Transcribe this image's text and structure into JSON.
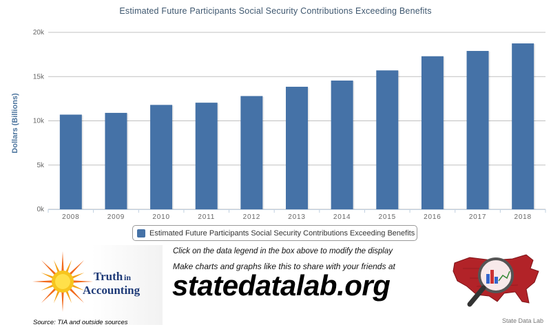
{
  "chart_data": {
    "type": "bar",
    "title": "Estimated Future Participants Social Security Contributions Exceeding Benefits",
    "ylabel": "Dollars (Billions)",
    "xlabel": "",
    "categories": [
      "2008",
      "2009",
      "2010",
      "2011",
      "2012",
      "2013",
      "2014",
      "2015",
      "2016",
      "2017",
      "2018"
    ],
    "series": [
      {
        "name": "Estimated Future Participants Social Security Contributions Exceeding Benefits",
        "values": [
          10700,
          10900,
          11800,
          12050,
          12800,
          13850,
          14550,
          15700,
          17300,
          17900,
          18750
        ],
        "color": "#4572a7"
      }
    ],
    "ylim": [
      0,
      20000
    ],
    "yticks": [
      0,
      5000,
      10000,
      15000,
      20000
    ],
    "ytick_labels": [
      "0k",
      "5k",
      "10k",
      "15k",
      "20k"
    ],
    "grid": true,
    "legend_position": "bottom-center"
  },
  "legend": {
    "label": "Estimated Future Participants Social Security Contributions Exceeding Benefits",
    "color": "#4572a7"
  },
  "footer": {
    "instruction": "Click on the data legend in the box above to modify the display",
    "promo": "Make charts and graphs like this to share with your friends at",
    "site": "statedatalab.org",
    "brand_line1": "Truth",
    "brand_line1b": "in",
    "brand_line2": "Accounting",
    "source": "Source: TIA and outside sources",
    "map_credit": "State Data Lab"
  }
}
